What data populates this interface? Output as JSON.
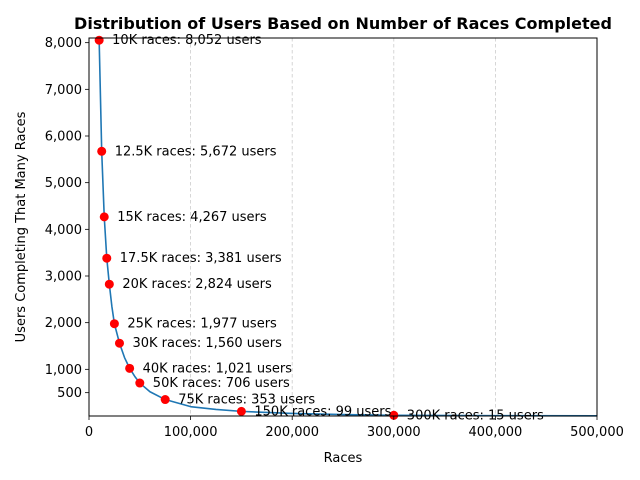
{
  "chart_data": {
    "type": "line",
    "title": "Distribution of Users Based on Number of Races Completed",
    "xlabel": "Races",
    "ylabel": "Users Completing That Many Races",
    "xlim": [
      0,
      500000
    ],
    "ylim": [
      0,
      8100
    ],
    "x_ticks": [
      0,
      100000,
      200000,
      300000,
      400000,
      500000
    ],
    "x_tick_labels": [
      "0",
      "100,000",
      "200,000",
      "300,000",
      "400,000",
      "500,000"
    ],
    "y_ticks": [
      500,
      1000,
      2000,
      3000,
      4000,
      5000,
      6000,
      7000,
      8000
    ],
    "y_tick_labels": [
      "500",
      "1,000",
      "2,000",
      "3,000",
      "4,000",
      "5,000",
      "6,000",
      "7,000",
      "8,000"
    ],
    "grid": "vertical dashed",
    "line_color": "#1f77b4",
    "marker_color": "#ff0000",
    "series": [
      {
        "x": [
          10000,
          12500,
          15000,
          17500,
          20000,
          22500,
          25000,
          30000,
          35000,
          40000,
          45000,
          50000,
          60000,
          75000,
          100000,
          125000,
          150000,
          200000,
          250000,
          300000,
          400000,
          500000
        ],
        "values": [
          8052,
          5672,
          4267,
          3381,
          2824,
          2350,
          1977,
          1560,
          1250,
          1021,
          850,
          706,
          520,
          353,
          200,
          140,
          99,
          55,
          30,
          15,
          8,
          5
        ]
      }
    ],
    "points": [
      {
        "x": 10000,
        "y": 8052,
        "label": "10K races: 8,052 users"
      },
      {
        "x": 12500,
        "y": 5672,
        "label": "12.5K races: 5,672 users"
      },
      {
        "x": 15000,
        "y": 4267,
        "label": "15K races: 4,267 users"
      },
      {
        "x": 17500,
        "y": 3381,
        "label": "17.5K races: 3,381 users"
      },
      {
        "x": 20000,
        "y": 2824,
        "label": "20K races: 2,824 users"
      },
      {
        "x": 25000,
        "y": 1977,
        "label": "25K races: 1,977 users"
      },
      {
        "x": 30000,
        "y": 1560,
        "label": "30K races: 1,560 users"
      },
      {
        "x": 40000,
        "y": 1021,
        "label": "40K races: 1,021 users"
      },
      {
        "x": 50000,
        "y": 706,
        "label": "50K races: 706 users"
      },
      {
        "x": 75000,
        "y": 353,
        "label": "75K races: 353 users"
      },
      {
        "x": 150000,
        "y": 99,
        "label": "150K races: 99 users"
      },
      {
        "x": 300000,
        "y": 15,
        "label": "300K races: 15 users"
      }
    ]
  }
}
